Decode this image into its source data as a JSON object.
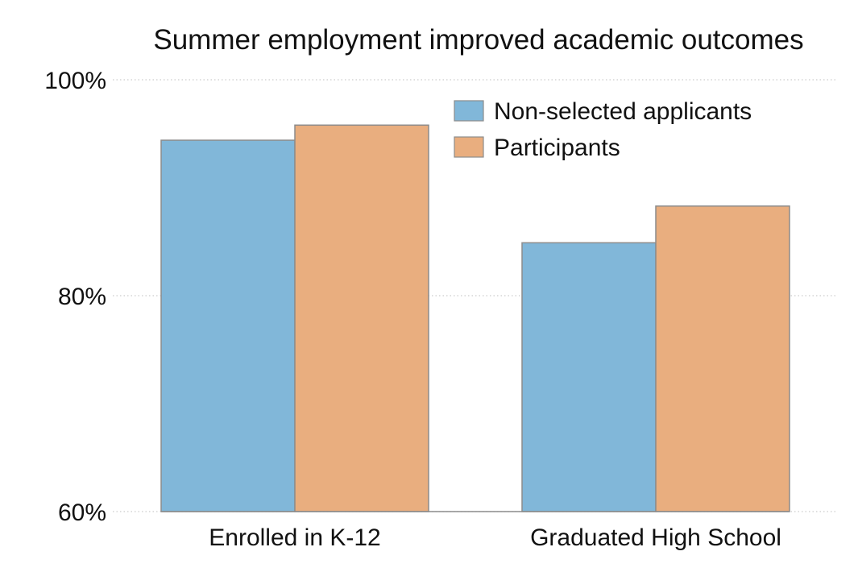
{
  "chart_data": {
    "type": "bar",
    "title": "Summer employment improved academic outcomes",
    "xlabel": "",
    "ylabel": "",
    "categories": [
      "Enrolled in K-12",
      "Graduated High School"
    ],
    "series": [
      {
        "name": "Non-selected applicants",
        "color": "#81b7d9",
        "values": [
          94.4,
          84.9
        ]
      },
      {
        "name": "Participants",
        "color": "#e9ae7f",
        "values": [
          95.8,
          88.3
        ]
      }
    ],
    "ylim": [
      60,
      100
    ],
    "yticks": [
      60,
      80,
      100
    ],
    "ytick_labels": [
      "60%",
      "80%",
      "100%"
    ],
    "grid": true,
    "legend_position": "top-right"
  }
}
